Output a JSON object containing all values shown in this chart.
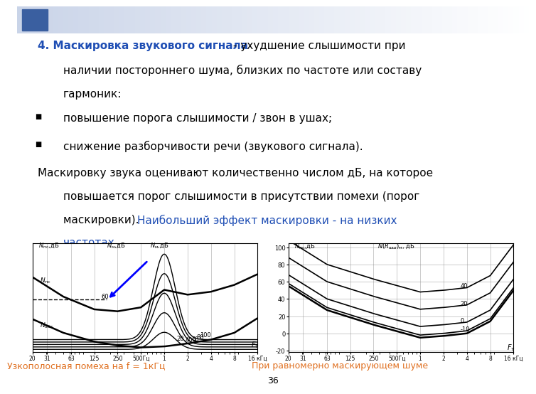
{
  "title_blue": "4. Маскировка звукового сигнала",
  "title_black1": " - ухудшение слышимости при",
  "title_black2": "наличии постороннего шума, близких по частоте или составу",
  "title_black3": "гармоник:",
  "bullet1": "повышение порога слышимости / звон в ушах;",
  "bullet2": "снижение разборчивости речи (звукового сигнала).",
  "body1": "Маскировку звука оценивают количественно числом дБ, на которое",
  "body2": "повышается порог слышимости в присутствии помехи (порог",
  "body3a": "маскировки).  ",
  "body3b": "Наибольший эффект маскировки - на низких",
  "body4": "частотах.",
  "caption_left": "Узкополосная помеха на f = 1кГц",
  "caption_right": "При равномерно маскирующем шуме",
  "bg_color": "#ffffff",
  "blue_color": "#1f4eb4",
  "orange_color": "#e07020",
  "text_color": "#000000",
  "page_num": "36",
  "freq_labels": [
    "20",
    "31",
    "63",
    "125",
    "250",
    "500Гц",
    "1",
    "2",
    "4",
    "8",
    "16 кГц"
  ],
  "freq_pos": [
    20,
    31,
    63,
    125,
    250,
    500,
    1000,
    2000,
    4000,
    8000,
    16000
  ]
}
